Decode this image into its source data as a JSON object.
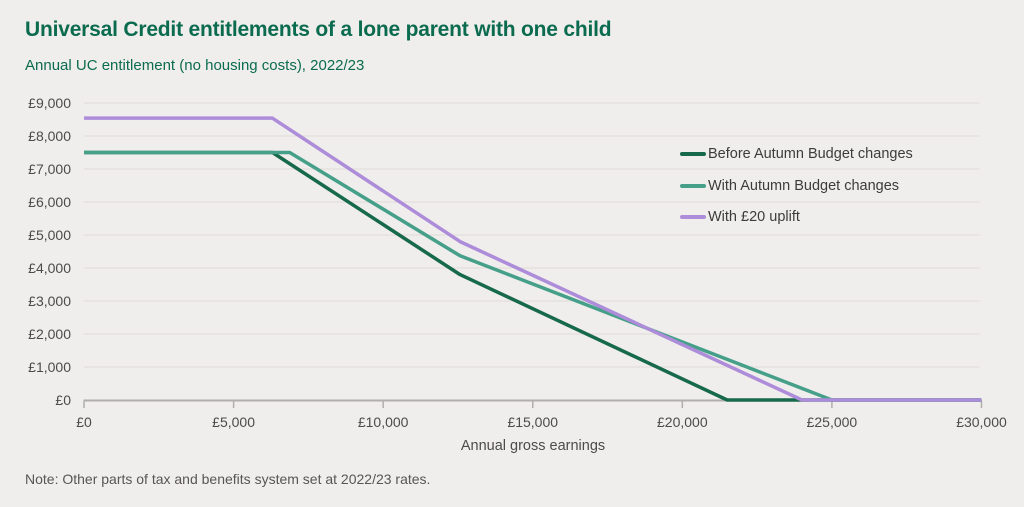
{
  "note": "Note: Other parts of tax and benefits system set at 2022/23 rates.",
  "colors": {
    "background": "#f0eeec",
    "title_green": "#0b6b4f",
    "grid": "#e2dfdc",
    "axis": "#b1aeab",
    "tick_text": "#4d4b49",
    "legend_text": "#3d3b3b",
    "note_text": "#585654"
  },
  "chart_data": {
    "type": "line",
    "title": "Universal Credit entitlements of a lone parent with one child",
    "subtitle": "Annual UC entitlement (no housing costs), 2022/23",
    "xlabel": "Annual gross earnings",
    "ylabel": "",
    "xlim": [
      0,
      30000
    ],
    "ylim": [
      0,
      9000
    ],
    "grid": "horizontal",
    "legend_position": "inside-top-right",
    "x_ticks": {
      "values": [
        0,
        5000,
        10000,
        15000,
        20000,
        25000,
        30000
      ],
      "labels": [
        "£0",
        "£5,000",
        "£10,000",
        "£15,000",
        "£20,000",
        "£25,000",
        "£30,000"
      ]
    },
    "y_ticks": {
      "values": [
        0,
        1000,
        2000,
        3000,
        4000,
        5000,
        6000,
        7000,
        8000,
        9000
      ],
      "labels": [
        "£0",
        "£1,000",
        "£2,000",
        "£3,000",
        "£4,000",
        "£5,000",
        "£6,000",
        "£7,000",
        "£8,000",
        "£9,000"
      ]
    },
    "series": [
      {
        "name": "Before Autumn Budget changes",
        "color": "#17694b",
        "points": [
          [
            0,
            7500
          ],
          [
            6300,
            7500
          ],
          [
            12570,
            3800
          ],
          [
            21500,
            0
          ],
          [
            30000,
            0
          ]
        ]
      },
      {
        "name": "With Autumn Budget changes",
        "color": "#46a089",
        "points": [
          [
            0,
            7500
          ],
          [
            6876,
            7500
          ],
          [
            12570,
            4370
          ],
          [
            25000,
            0
          ],
          [
            30000,
            0
          ]
        ]
      },
      {
        "name": "With £20 uplift",
        "color": "#ad8cd9",
        "points": [
          [
            0,
            8540
          ],
          [
            6300,
            8540
          ],
          [
            12570,
            4800
          ],
          [
            24000,
            0
          ],
          [
            30000,
            0
          ]
        ]
      }
    ]
  }
}
